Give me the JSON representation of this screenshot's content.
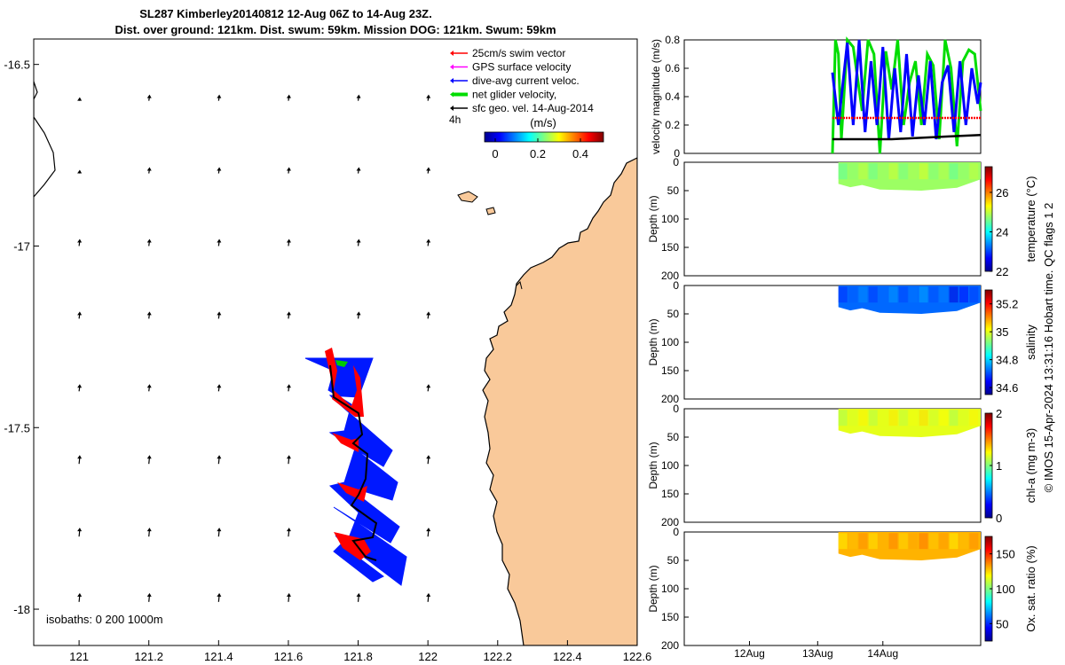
{
  "title": {
    "line1": "SL287 Kimberley20140812 12-Aug 06Z to 14-Aug 23Z.",
    "line2": "Dist. over ground: 121km. Dist. swum: 59km. Mission DOG: 121km. Swum: 59km"
  },
  "map": {
    "xticks": [
      "121",
      "121.2",
      "121.4",
      "121.6",
      "121.8",
      "122",
      "122.2",
      "122.4",
      "122.6"
    ],
    "yticks": [
      "-16.5",
      "-17",
      "-17.5",
      "-18"
    ],
    "xlim": [
      120.87,
      122.6
    ],
    "ylim": [
      -18.1,
      -16.43
    ],
    "isobaths": "isobaths: 0   200  1000m",
    "colors": {
      "land": "#f9c99a",
      "track": "#0018ff",
      "swim": "#ff0000",
      "path": "#000000"
    }
  },
  "legend": {
    "items": [
      {
        "label": "25cm/s swim vector",
        "color": "#ff0000"
      },
      {
        "label": "GPS surface velocity",
        "color": "#ff00ff"
      },
      {
        "label": "dive-avg current veloc.",
        "color": "#0000ff"
      },
      {
        "label": "net glider velocity,",
        "color": "#00dd00"
      },
      {
        "label": "sfc geo. vel. 14-Aug-2014",
        "color": "#000000"
      }
    ],
    "interval": "4h",
    "colorbar_title": "(m/s)",
    "colorbar_ticks": [
      "0",
      "0.2",
      "0.4"
    ]
  },
  "chart_data": [
    {
      "type": "line",
      "ylabel": "velocity magnitude (m/s)",
      "ylim": [
        0,
        0.8
      ],
      "yticks": [
        "0",
        "0.2",
        "0.4",
        "0.6",
        "0.8"
      ],
      "x_range": [
        0,
        1
      ],
      "series": [
        {
          "name": "net glider velocity",
          "color": "#00dd00",
          "x": [
            0.5,
            0.51,
            0.52,
            0.53,
            0.55,
            0.57,
            0.6,
            0.62,
            0.64,
            0.66,
            0.68,
            0.7,
            0.72,
            0.74,
            0.76,
            0.78,
            0.8,
            0.82,
            0.84,
            0.86,
            0.88,
            0.9,
            0.92,
            0.94,
            0.96,
            0.98,
            1.0
          ],
          "values": [
            0.0,
            0.8,
            0.7,
            0.1,
            0.8,
            0.75,
            0.3,
            0.8,
            0.7,
            0.0,
            0.72,
            0.45,
            0.8,
            0.2,
            0.5,
            0.65,
            0.2,
            0.7,
            0.62,
            0.1,
            0.8,
            0.6,
            0.05,
            0.65,
            0.73,
            0.7,
            0.3
          ]
        },
        {
          "name": "dive-avg current veloc.",
          "color": "#0000ff",
          "x": [
            0.5,
            0.52,
            0.55,
            0.57,
            0.59,
            0.61,
            0.63,
            0.65,
            0.67,
            0.69,
            0.71,
            0.73,
            0.75,
            0.77,
            0.79,
            0.81,
            0.83,
            0.85,
            0.87,
            0.89,
            0.91,
            0.93,
            0.95,
            0.97,
            0.99,
            1.0
          ],
          "values": [
            0.57,
            0.2,
            0.78,
            0.2,
            0.8,
            0.15,
            0.65,
            0.2,
            0.75,
            0.1,
            0.6,
            0.15,
            0.7,
            0.12,
            0.55,
            0.2,
            0.65,
            0.1,
            0.5,
            0.62,
            0.15,
            0.65,
            0.2,
            0.6,
            0.35,
            0.5
          ]
        },
        {
          "name": "swim speed",
          "color": "#ff0000",
          "x": [
            0.5,
            1.0
          ],
          "values": [
            0.25,
            0.25
          ]
        },
        {
          "name": "sfc geo. vel.",
          "color": "#000000",
          "x": [
            0.5,
            0.6,
            0.7,
            0.8,
            0.9,
            1.0
          ],
          "values": [
            0.1,
            0.1,
            0.1,
            0.11,
            0.12,
            0.13
          ]
        }
      ]
    },
    {
      "type": "heatmap",
      "variable": "temperature",
      "ylabel": "Depth (m)",
      "ylim": [
        200,
        0
      ],
      "yticks": [
        "0",
        "50",
        "100",
        "150",
        "200"
      ],
      "colorbar_label": "temperature (°C)",
      "colorbar_range": [
        22,
        27.3
      ],
      "colorbar_ticks": [
        {
          "v": 22,
          "label": "22"
        },
        {
          "v": 24,
          "label": "24"
        },
        {
          "v": 26,
          "label": "26"
        }
      ],
      "typical_value": 24.8
    },
    {
      "type": "heatmap",
      "variable": "salinity",
      "ylabel": "Depth (m)",
      "ylim": [
        200,
        0
      ],
      "yticks": [
        "0",
        "50",
        "100",
        "150",
        "200"
      ],
      "colorbar_label": "salinity",
      "colorbar_range": [
        34.55,
        35.3
      ],
      "colorbar_ticks": [
        {
          "v": 34.6,
          "label": "34.6"
        },
        {
          "v": 34.8,
          "label": "34.8"
        },
        {
          "v": 35,
          "label": "35"
        },
        {
          "v": 35.2,
          "label": "35.2"
        }
      ],
      "typical_value": 34.72
    },
    {
      "type": "heatmap",
      "variable": "chl-a",
      "ylabel": "Depth (m)",
      "ylim": [
        200,
        0
      ],
      "yticks": [
        "0",
        "50",
        "100",
        "150",
        "200"
      ],
      "colorbar_label": "chl-a (mg m-3)",
      "colorbar_range": [
        0,
        2
      ],
      "colorbar_ticks": [
        {
          "v": 0,
          "label": "0"
        },
        {
          "v": 1,
          "label": "1"
        },
        {
          "v": 2,
          "label": "2"
        }
      ],
      "typical_value": 1.2
    },
    {
      "type": "heatmap",
      "variable": "oxygen",
      "ylabel": "Depth (m)",
      "ylim": [
        200,
        0
      ],
      "yticks": [
        "0",
        "50",
        "100",
        "150",
        "200"
      ],
      "colorbar_label": "Ox. sat. ratio (%)",
      "colorbar_range": [
        25,
        175
      ],
      "colorbar_ticks": [
        {
          "v": 50,
          "label": "50"
        },
        {
          "v": 100,
          "label": "100"
        },
        {
          "v": 150,
          "label": "150"
        }
      ],
      "typical_value": 130
    }
  ],
  "time_axis": {
    "ticks": [
      "12Aug",
      "13Aug",
      "14Aug"
    ],
    "tick_fractions": [
      0.22,
      0.45,
      0.67
    ]
  },
  "footer": "© IMOS 15-Apr-2024 13:31:16 Hobart time. QC flags 1  2"
}
